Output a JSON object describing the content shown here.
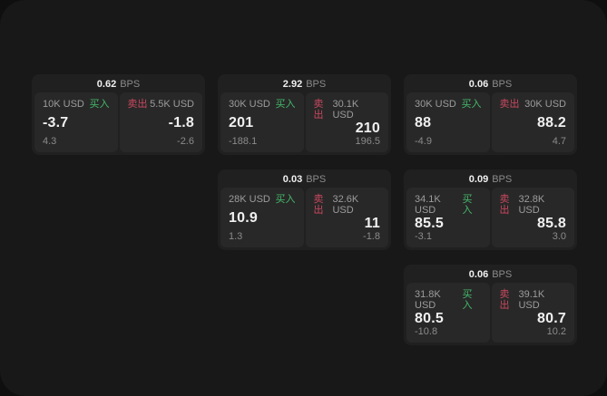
{
  "colors": {
    "outer-bg": "#0f0f0f",
    "window-bg": "#181818",
    "card-bg": "#202020",
    "panel-bg": "#282828",
    "text-primary": "#f0f0f0",
    "text-muted": "#9c9c9c",
    "text-dim": "#8b8b8b",
    "buy-green": "#44b96a",
    "sell-red": "#c9485f"
  },
  "labels": {
    "bps_unit": "BPS",
    "buy": "买入",
    "sell": "卖出"
  },
  "cards": [
    {
      "row": 1,
      "col": 1,
      "bps": "0.62",
      "buy": {
        "amount": "10K USD",
        "price": "-3.7",
        "delta": "4.3"
      },
      "sell": {
        "amount": "5.5K USD",
        "price": "-1.8",
        "delta": "-2.6"
      }
    },
    {
      "row": 1,
      "col": 2,
      "bps": "2.92",
      "buy": {
        "amount": "30K USD",
        "price": "201",
        "delta": "-188.1"
      },
      "sell": {
        "amount": "30.1K USD",
        "price": "210",
        "delta": "196.5"
      }
    },
    {
      "row": 1,
      "col": 3,
      "bps": "0.06",
      "buy": {
        "amount": "30K USD",
        "price": "88",
        "delta": "-4.9"
      },
      "sell": {
        "amount": "30K USD",
        "price": "88.2",
        "delta": "4.7"
      }
    },
    {
      "row": 2,
      "col": 2,
      "bps": "0.03",
      "buy": {
        "amount": "28K USD",
        "price": "10.9",
        "delta": "1.3"
      },
      "sell": {
        "amount": "32.6K USD",
        "price": "11",
        "delta": "-1.8"
      }
    },
    {
      "row": 2,
      "col": 3,
      "bps": "0.09",
      "buy": {
        "amount": "34.1K USD",
        "price": "85.5",
        "delta": "-3.1"
      },
      "sell": {
        "amount": "32.8K USD",
        "price": "85.8",
        "delta": "3.0"
      }
    },
    {
      "row": 3,
      "col": 3,
      "bps": "0.06",
      "buy": {
        "amount": "31.8K USD",
        "price": "80.5",
        "delta": "-10.8"
      },
      "sell": {
        "amount": "39.1K USD",
        "price": "80.7",
        "delta": "10.2"
      }
    }
  ]
}
